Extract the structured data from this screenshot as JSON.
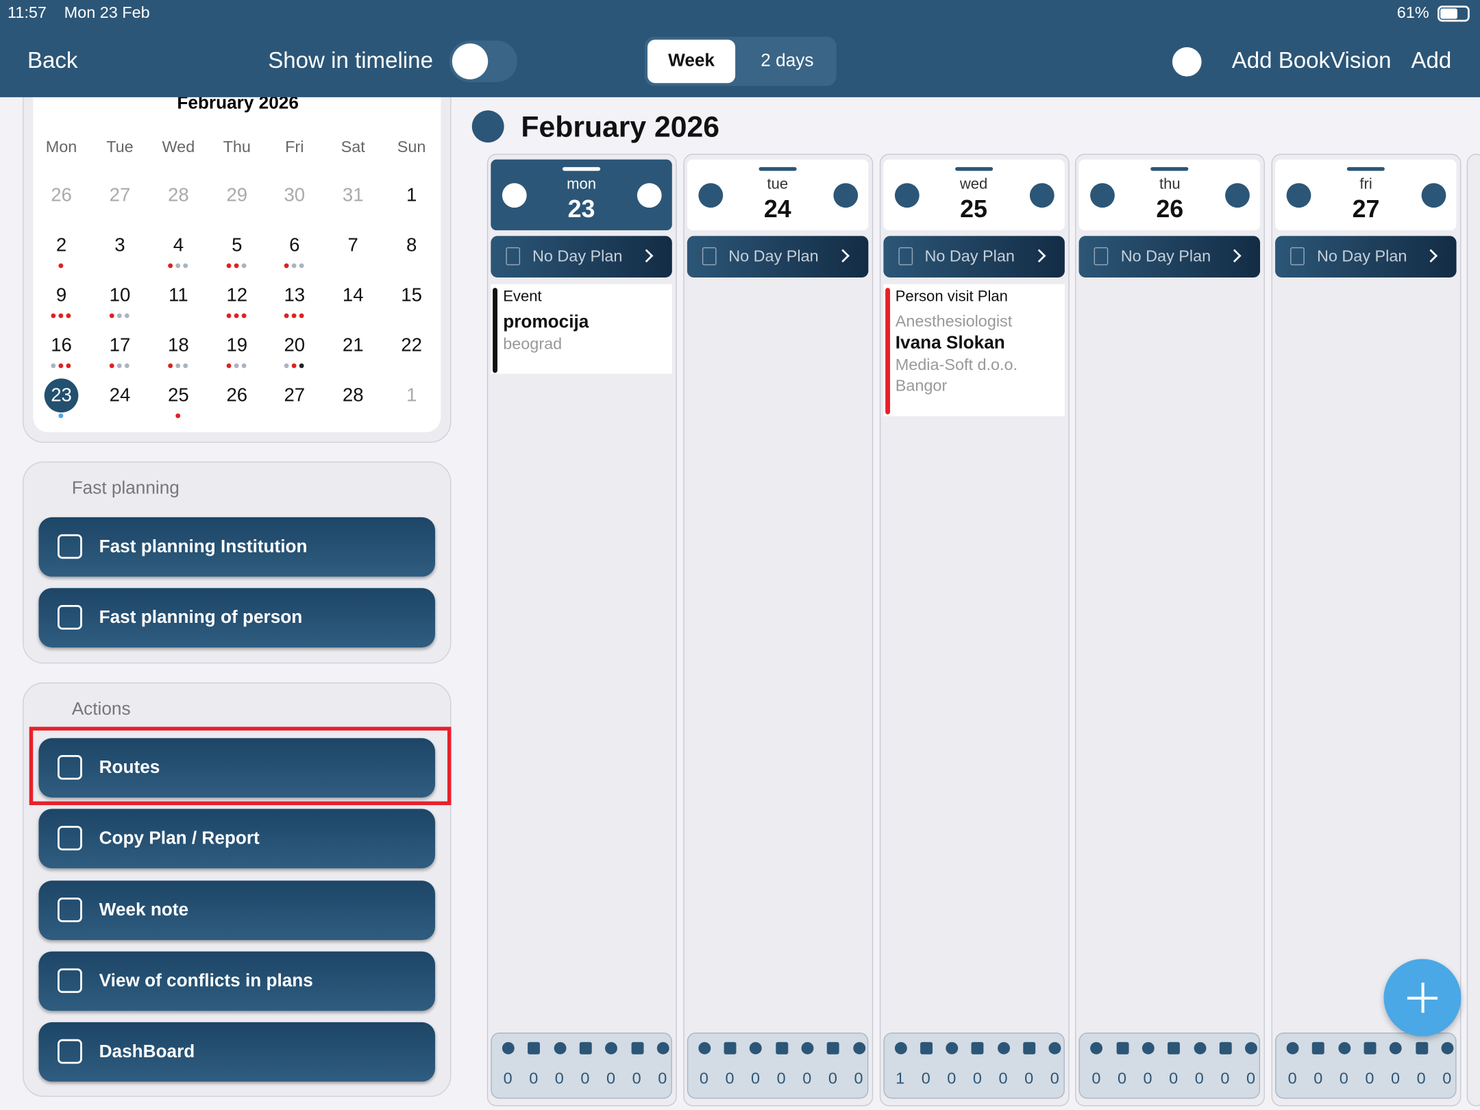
{
  "status": {
    "time": "11:57",
    "date": "Mon 23 Feb",
    "battery": "61%"
  },
  "toolbar": {
    "back": "Back",
    "show_timeline": "Show in timeline",
    "tabs": [
      "Week",
      "2 days"
    ],
    "add_bookvision": "Add BookVision",
    "add": "Add"
  },
  "calendar": {
    "month": "February 2026",
    "weekdays": [
      "Mon",
      "Tue",
      "Wed",
      "Thu",
      "Fri",
      "Sat",
      "Sun"
    ],
    "rows": [
      [
        "26",
        "27",
        "28",
        "29",
        "30",
        "31",
        "1"
      ],
      [
        "2",
        "3",
        "4",
        "5",
        "6",
        "7",
        "8"
      ],
      [
        "9",
        "10",
        "11",
        "12",
        "13",
        "14",
        "15"
      ],
      [
        "16",
        "17",
        "18",
        "19",
        "20",
        "21",
        "22"
      ],
      [
        "23",
        "24",
        "25",
        "26",
        "27",
        "28",
        "1"
      ]
    ]
  },
  "fast_planning": {
    "title": "Fast planning",
    "buttons": [
      "Fast planning Institution",
      "Fast planning of person"
    ]
  },
  "actions": {
    "title": "Actions",
    "buttons": [
      "Routes",
      "Copy Plan / Report",
      "Week note",
      "View of conflicts in plans",
      "DashBoard"
    ]
  },
  "week": {
    "title": "February 2026",
    "days": [
      {
        "dow": "mon",
        "num": "23",
        "plan": "No Day Plan",
        "counts": [
          0,
          0,
          0,
          0,
          0,
          0,
          0
        ],
        "events": [
          {
            "type": "Event",
            "title": "promocija",
            "lines": [
              "beograd"
            ]
          }
        ]
      },
      {
        "dow": "tue",
        "num": "24",
        "plan": "No Day Plan",
        "counts": [
          0,
          0,
          0,
          0,
          0,
          0,
          0
        ],
        "events": []
      },
      {
        "dow": "wed",
        "num": "25",
        "plan": "No Day Plan",
        "counts": [
          1,
          0,
          0,
          0,
          0,
          0,
          0
        ],
        "events": [
          {
            "type": "Person visit Plan",
            "role": "Anesthesiologist",
            "title": "Ivana Slokan",
            "lines": [
              "Media-Soft d.o.o.",
              "Bangor"
            ]
          }
        ]
      },
      {
        "dow": "thu",
        "num": "26",
        "plan": "No Day Plan",
        "counts": [
          0,
          0,
          0,
          0,
          0,
          0,
          0
        ],
        "events": []
      },
      {
        "dow": "fri",
        "num": "27",
        "plan": "No Day Plan",
        "counts": [
          0,
          0,
          0,
          0,
          0,
          0,
          0
        ],
        "events": []
      }
    ]
  }
}
